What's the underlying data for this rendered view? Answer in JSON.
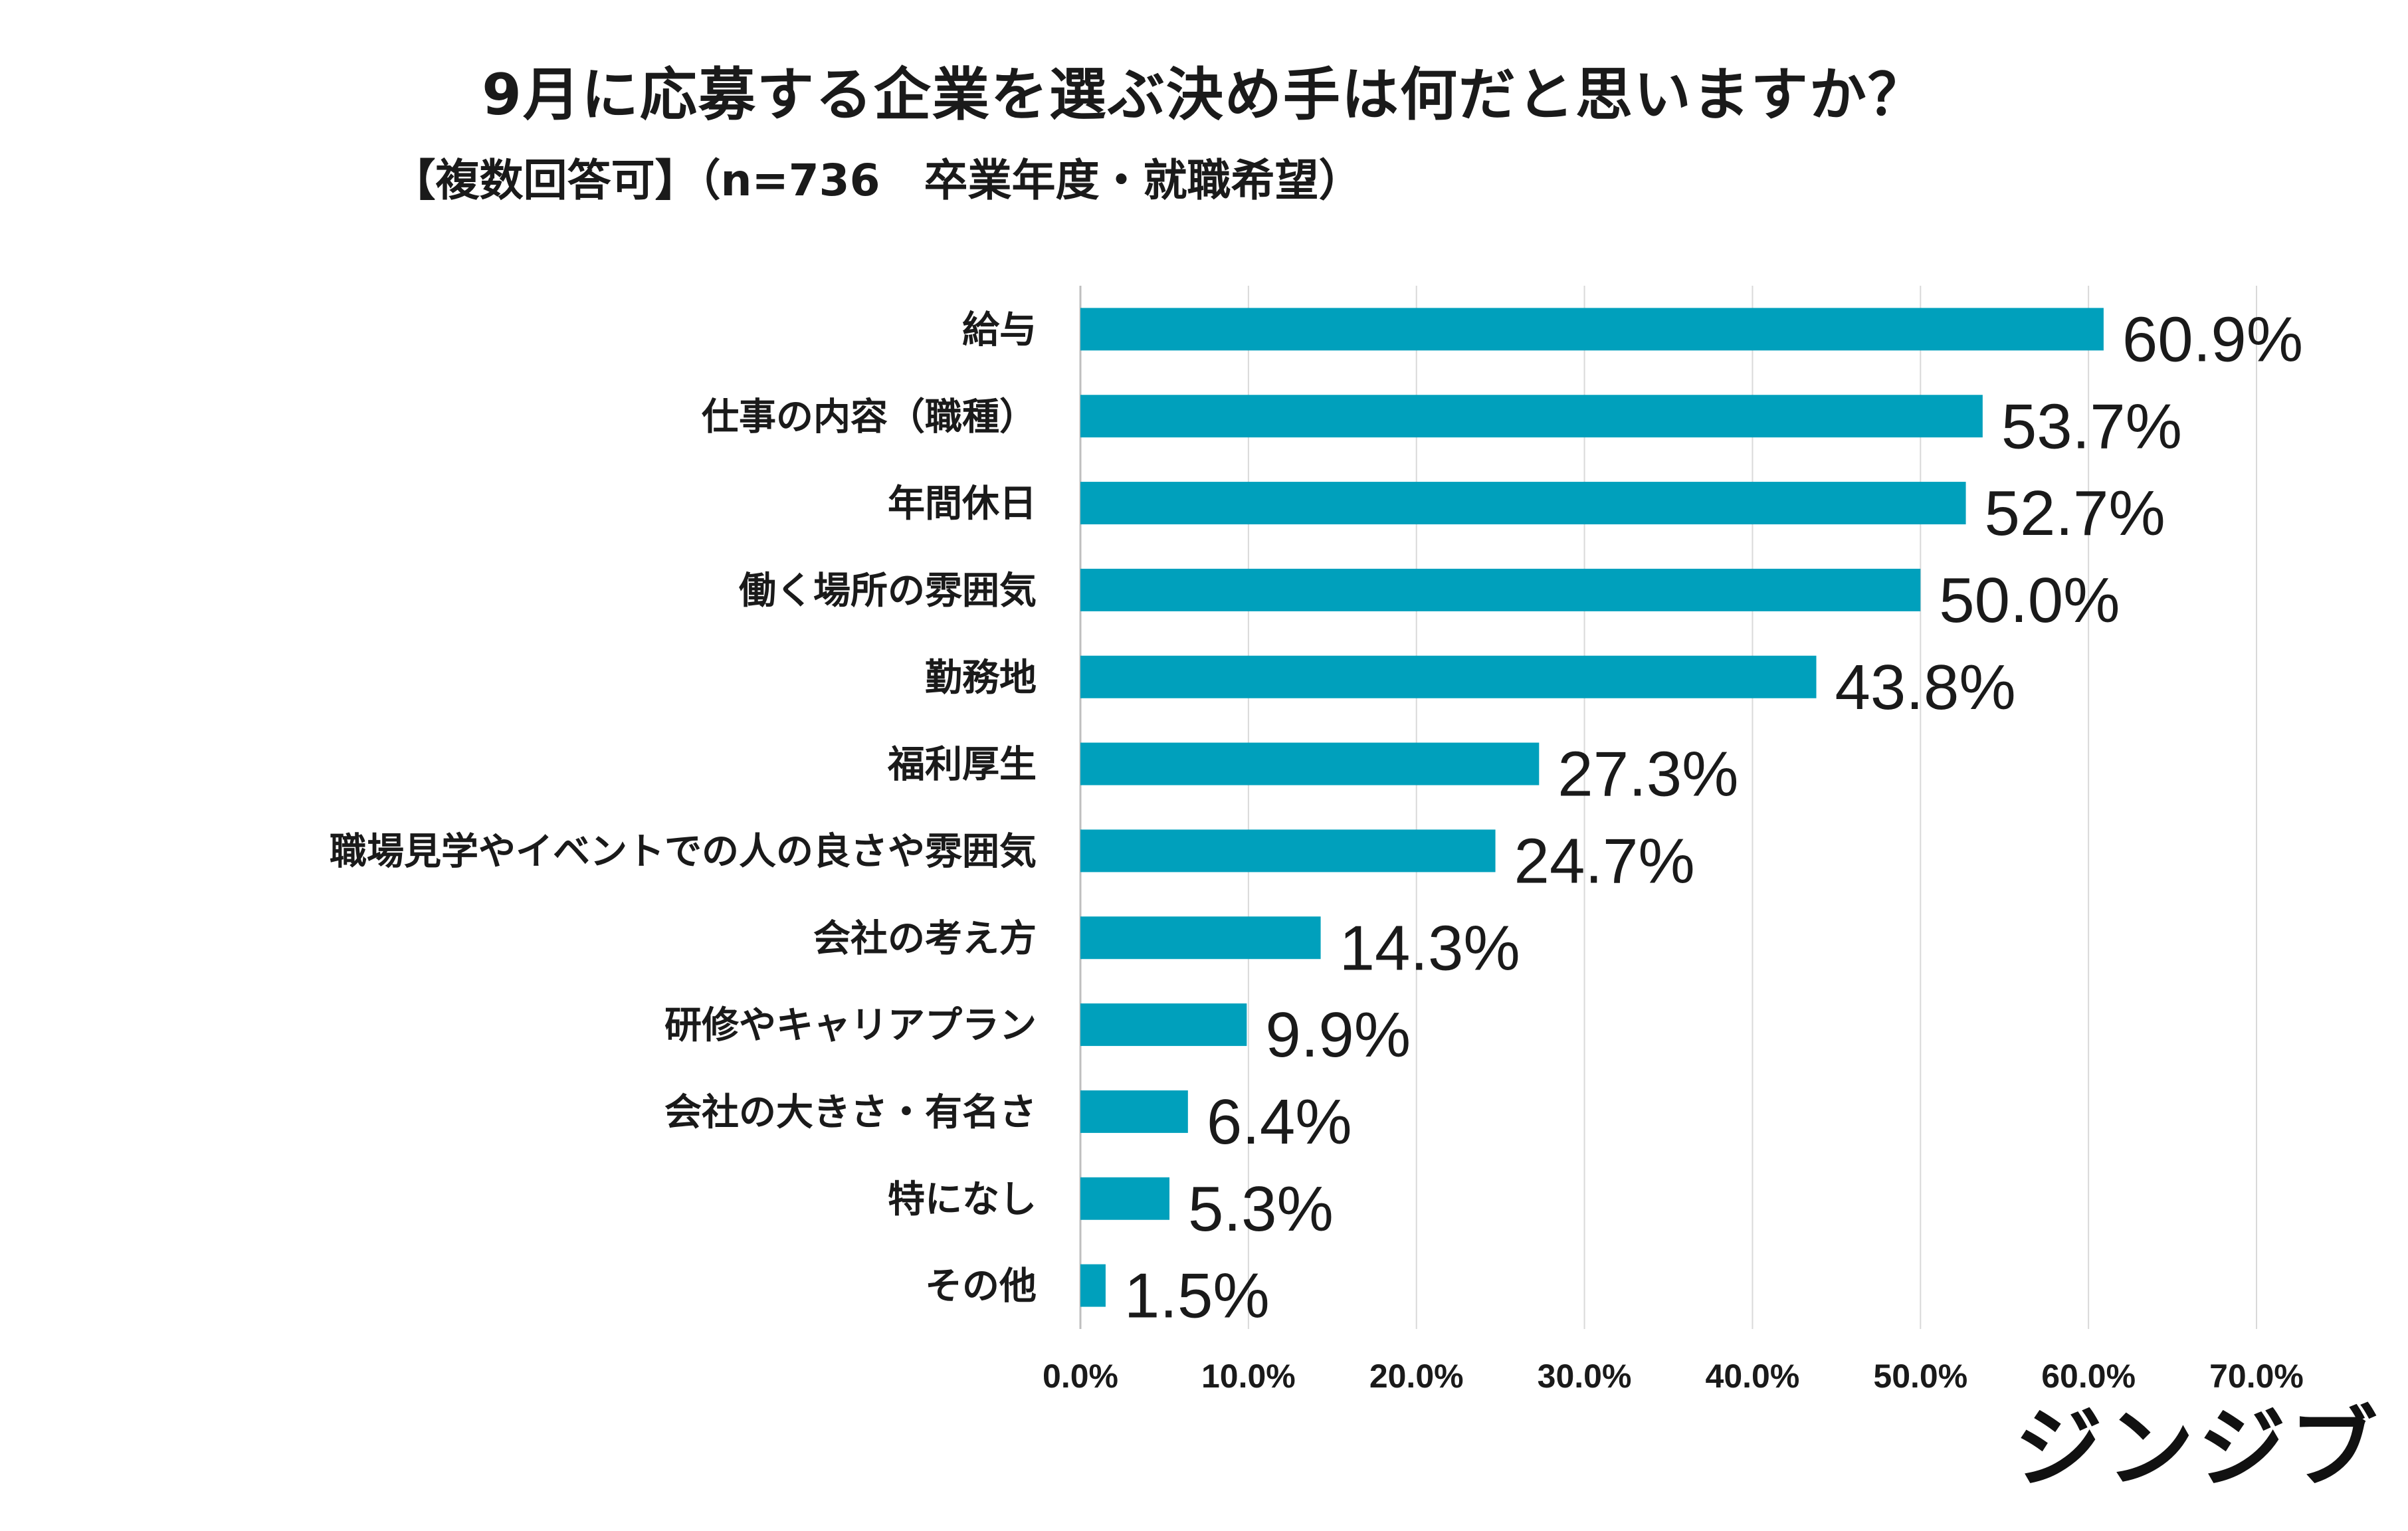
{
  "chart_data": {
    "type": "bar",
    "orientation": "horizontal",
    "title": "9月に応募する企業を選ぶ決め手は何だと思いますか？",
    "subtitle": "【複数回答可】（n=736　卒業年度・就職希望）",
    "categories": [
      "給与",
      "仕事の内容（職種）",
      "年間休日",
      "働く場所の雰囲気",
      "勤務地",
      "福利厚生",
      "職場見学やイベントでの人の良さや雰囲気",
      "会社の考え方",
      "研修やキャリアプラン",
      "会社の大きさ・有名さ",
      "特になし",
      "その他"
    ],
    "values": [
      60.9,
      53.7,
      52.7,
      50.0,
      43.8,
      27.3,
      24.7,
      14.3,
      9.9,
      6.4,
      5.3,
      1.5
    ],
    "value_labels": [
      "60.9%",
      "53.7%",
      "52.7%",
      "50.0%",
      "43.8%",
      "27.3%",
      "24.7%",
      "14.3%",
      "9.9%",
      "6.4%",
      "5.3%",
      "1.5%"
    ],
    "xticks": [
      "0.0%",
      "10.0%",
      "20.0%",
      "30.0%",
      "40.0%",
      "50.0%",
      "60.0%",
      "70.0%"
    ],
    "xlim": [
      0,
      70
    ],
    "grid": true,
    "bar_color": "#00A0BC",
    "grid_color": "#D9D9D9"
  },
  "brand": "ジンジブ"
}
